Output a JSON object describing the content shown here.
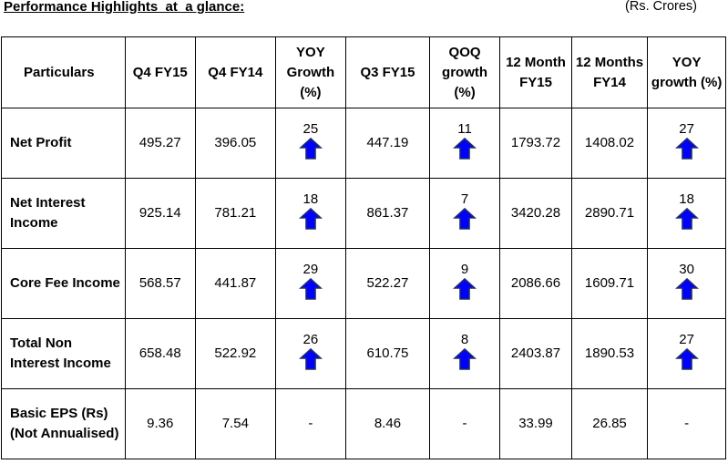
{
  "header": {
    "title": "Performance Highlights  at  a glance:",
    "unit": "(Rs. Crores)"
  },
  "table": {
    "columns": [
      "Particulars",
      "Q4 FY15",
      "Q4 FY14",
      "YOY Growth (%)",
      "Q3 FY15",
      "QOQ growth (%)",
      "12 Month FY15",
      "12 Months FY14",
      "YOY growth (%)"
    ],
    "rows": [
      {
        "label": "Net Profit",
        "q4fy15": "495.27",
        "q4fy14": "396.05",
        "yoy": "25",
        "q3fy15": "447.19",
        "qoq": "11",
        "m12fy15": "1793.72",
        "m12fy14": "1408.02",
        "yoy12": "27"
      },
      {
        "label": "Net Interest Income",
        "q4fy15": "925.14",
        "q4fy14": "781.21",
        "yoy": "18",
        "q3fy15": "861.37",
        "qoq": "7",
        "m12fy15": "3420.28",
        "m12fy14": "2890.71",
        "yoy12": "18"
      },
      {
        "label": "Core Fee Income",
        "q4fy15": "568.57",
        "q4fy14": "441.87",
        "yoy": "29",
        "q3fy15": "522.27",
        "qoq": "9",
        "m12fy15": "2086.66",
        "m12fy14": "1609.71",
        "yoy12": "30"
      },
      {
        "label": "Total Non Interest Income",
        "q4fy15": "658.48",
        "q4fy14": "522.92",
        "yoy": "26",
        "q3fy15": "610.75",
        "qoq": "8",
        "m12fy15": "2403.87",
        "m12fy14": "1890.53",
        "yoy12": "27"
      },
      {
        "label": " Basic EPS (Rs) (Not Annualised)",
        "q4fy15": "9.36",
        "q4fy14": "7.54",
        "yoy": "-",
        "q3fy15": "8.46",
        "qoq": "-",
        "m12fy15": "33.99",
        "m12fy14": "26.85",
        "yoy12": "-"
      }
    ]
  },
  "icons": {
    "growth_arrow": "up-arrow-icon"
  },
  "colors": {
    "arrow_fill": "#0000ff",
    "arrow_stroke": "#1f2d6b"
  }
}
